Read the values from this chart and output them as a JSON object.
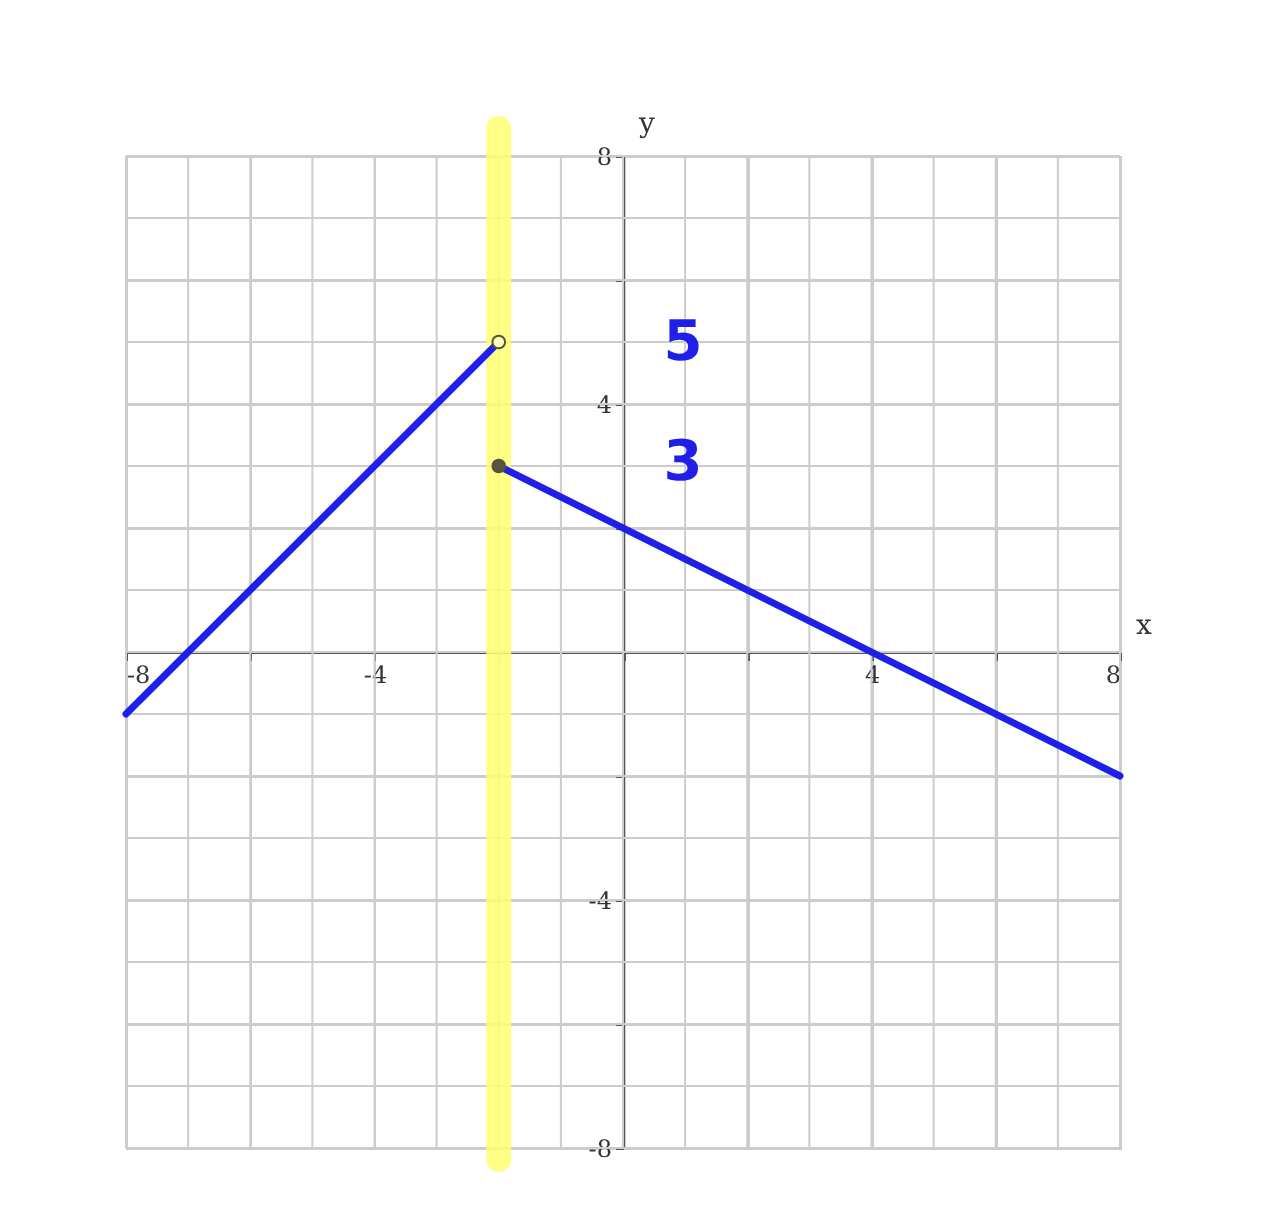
{
  "chart_data": {
    "type": "line",
    "xlabel": "x",
    "ylabel": "y",
    "xlim": [
      -8,
      8
    ],
    "ylim": [
      -8,
      8
    ],
    "xticks": [
      -8,
      {
        "value": -7,
        "label": null
      },
      {
        "value": -6,
        "label": null
      },
      {
        "value": -5,
        "label": null
      },
      -4,
      {
        "value": -3,
        "label": null
      },
      {
        "value": -2,
        "label": null
      },
      {
        "value": -1,
        "label": null
      },
      {
        "value": 0,
        "label": null
      },
      {
        "value": 1,
        "label": null
      },
      {
        "value": 2,
        "label": null
      },
      {
        "value": 3,
        "label": null
      },
      4,
      {
        "value": 5,
        "label": null
      },
      {
        "value": 6,
        "label": null
      },
      {
        "value": 7,
        "label": null
      },
      8
    ],
    "yticks": [
      -8,
      {
        "value": -7,
        "label": null
      },
      {
        "value": -6,
        "label": null
      },
      {
        "value": -5,
        "label": null
      },
      -4,
      {
        "value": -3,
        "label": null
      },
      {
        "value": -2,
        "label": null
      },
      {
        "value": -1,
        "label": null
      },
      {
        "value": 0,
        "label": null
      },
      {
        "value": 1,
        "label": null
      },
      {
        "value": 2,
        "label": null
      },
      {
        "value": 3,
        "label": null
      },
      4,
      {
        "value": 5,
        "label": null
      },
      {
        "value": 6,
        "label": null
      },
      {
        "value": 7,
        "label": null
      },
      8
    ],
    "grid": true,
    "series": [
      {
        "color": "#1f1fe8",
        "x": [
          -8,
          -2
        ],
        "values": [
          -1,
          5
        ]
      },
      {
        "color": "#1f1fe8",
        "x": [
          -2,
          8
        ],
        "values": [
          3,
          -2
        ]
      },
      {
        "type": "scatter",
        "color": "#ffffc0",
        "x": [
          -2
        ],
        "values": [
          5
        ],
        "marker": "circle"
      },
      {
        "type": "scatter",
        "color": "#555544",
        "x": [
          -2
        ],
        "values": [
          3
        ],
        "marker": "circle"
      }
    ],
    "bands": [
      {
        "axis": "x",
        "from": -2.2,
        "to": -1.8,
        "color": "#ffff70"
      }
    ],
    "annotations": [
      "5",
      "3"
    ]
  }
}
